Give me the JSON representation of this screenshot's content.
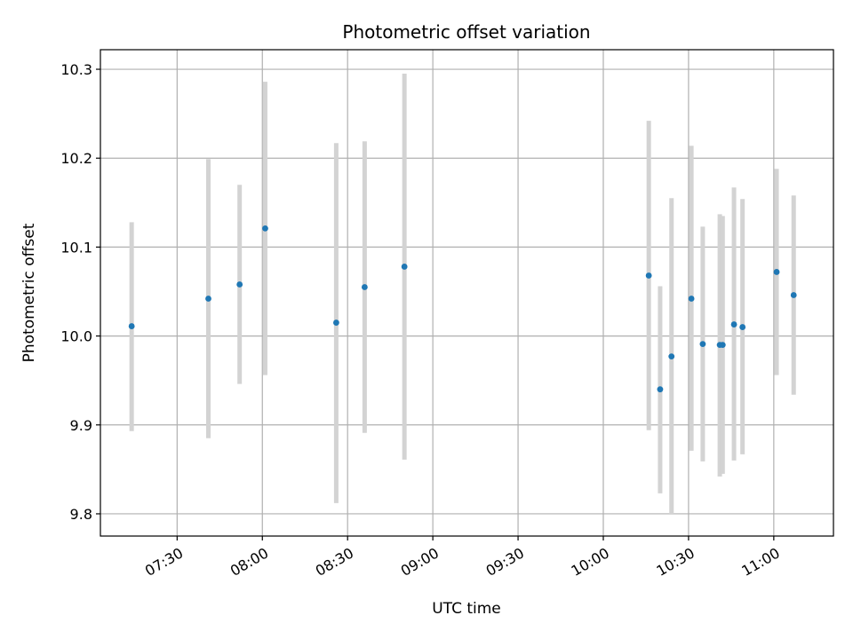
{
  "chart_data": {
    "type": "scatter",
    "title": "Photometric offset variation",
    "xlabel": "UTC time",
    "ylabel": "Photometric offset",
    "x_ticks": [
      "07:30",
      "08:00",
      "08:30",
      "09:00",
      "09:30",
      "10:00",
      "10:30",
      "11:00"
    ],
    "y_ticks": [
      "9.8",
      "9.9",
      "10.0",
      "10.1",
      "10.2",
      "10.3"
    ],
    "xlim": [
      "07:03",
      "11:21"
    ],
    "ylim": [
      9.775,
      10.322
    ],
    "grid": true,
    "colors": {
      "point": "#1f77b4",
      "errorbar": "#d3d3d3",
      "grid": "#b0b0b0"
    },
    "points": [
      {
        "x": "07:14",
        "y": 10.011,
        "ylow": 9.893,
        "yhigh": 10.128
      },
      {
        "x": "07:41",
        "y": 10.042,
        "ylow": 9.885,
        "yhigh": 10.199
      },
      {
        "x": "07:52",
        "y": 10.058,
        "ylow": 9.946,
        "yhigh": 10.17
      },
      {
        "x": "08:01",
        "y": 10.121,
        "ylow": 9.956,
        "yhigh": 10.286
      },
      {
        "x": "08:26",
        "y": 10.015,
        "ylow": 9.812,
        "yhigh": 10.217
      },
      {
        "x": "08:36",
        "y": 10.055,
        "ylow": 9.891,
        "yhigh": 10.219
      },
      {
        "x": "08:50",
        "y": 10.078,
        "ylow": 9.861,
        "yhigh": 10.295
      },
      {
        "x": "10:16",
        "y": 10.068,
        "ylow": 9.894,
        "yhigh": 10.242
      },
      {
        "x": "10:20",
        "y": 9.94,
        "ylow": 9.823,
        "yhigh": 10.056
      },
      {
        "x": "10:24",
        "y": 9.977,
        "ylow": 9.8,
        "yhigh": 10.155
      },
      {
        "x": "10:31",
        "y": 10.042,
        "ylow": 9.871,
        "yhigh": 10.214
      },
      {
        "x": "10:35",
        "y": 9.991,
        "ylow": 9.859,
        "yhigh": 10.123
      },
      {
        "x": "10:41",
        "y": 9.99,
        "ylow": 9.842,
        "yhigh": 10.137
      },
      {
        "x": "10:42",
        "y": 9.99,
        "ylow": 9.845,
        "yhigh": 10.135
      },
      {
        "x": "10:46",
        "y": 10.013,
        "ylow": 9.86,
        "yhigh": 10.167
      },
      {
        "x": "10:49",
        "y": 10.01,
        "ylow": 9.867,
        "yhigh": 10.154
      },
      {
        "x": "11:01",
        "y": 10.072,
        "ylow": 9.956,
        "yhigh": 10.188
      },
      {
        "x": "11:07",
        "y": 10.046,
        "ylow": 9.934,
        "yhigh": 10.158
      }
    ]
  }
}
